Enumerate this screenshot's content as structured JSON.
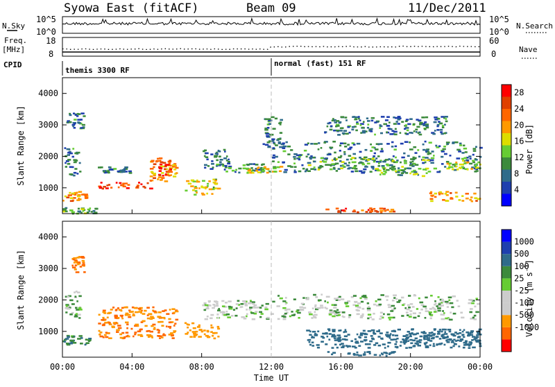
{
  "header": {
    "station": "Syowa East (fitACF)",
    "beam": "Beam 09",
    "date": "11/Dec/2011"
  },
  "top_panel": {
    "left_label": "N.Sky",
    "right_label": "N.Search",
    "left_ticks": [
      "10^5",
      "10^0"
    ],
    "right_ticks": [
      "10^5",
      "10^0"
    ]
  },
  "freq_panel": {
    "left_label_1": "Freq.",
    "left_label_2": "[MHz]",
    "right_label": "Nave",
    "left_ticks": [
      "18",
      "8"
    ],
    "right_ticks": [
      "60",
      "0"
    ]
  },
  "cpid": {
    "label": "CPID",
    "mode1": "themis 3300 RF",
    "mode2": "normal (fast) 151 RF"
  },
  "colors": {
    "power_scale": [
      "#0000ff",
      "#1e3fae",
      "#2f6b8a",
      "#3c8a3c",
      "#66cc33",
      "#dddd00",
      "#ff9900",
      "#ff6600",
      "#e04000",
      "#ff0000"
    ],
    "velocity_scale": [
      "#ff0000",
      "#ff6600",
      "#ff9900",
      "#cccccc",
      "#cccccc",
      "#66cc33",
      "#3c8a3c",
      "#2f6b8a",
      "#1e3fae",
      "#0000ff"
    ]
  },
  "chart_data": [
    {
      "type": "heatmap",
      "panel": "power",
      "ylabel": "Slant Range [km]",
      "ylim": [
        180,
        4500
      ],
      "y_ticks": [
        "1000",
        "2000",
        "3000",
        "4000"
      ],
      "colorbar_label": "Power [dB]",
      "colorbar_ticks": [
        "4",
        "8",
        "12",
        "16",
        "20",
        "24",
        "28"
      ],
      "colorbar_range": [
        0,
        30
      ],
      "regions": [
        {
          "t": [
            0.1,
            1.0
          ],
          "r": [
            1400,
            2300
          ],
          "v": 8
        },
        {
          "t": [
            0.2,
            1.2
          ],
          "r": [
            2900,
            3400
          ],
          "v": 8
        },
        {
          "t": [
            0.0,
            1.5
          ],
          "r": [
            600,
            900
          ],
          "v": 20
        },
        {
          "t": [
            0.0,
            2.0
          ],
          "r": [
            200,
            400
          ],
          "v": 12
        },
        {
          "t": [
            2.0,
            5.0
          ],
          "r": [
            1000,
            1200
          ],
          "v": 26
        },
        {
          "t": [
            2.0,
            4.0
          ],
          "r": [
            1500,
            1700
          ],
          "v": 8
        },
        {
          "t": [
            5.0,
            6.5
          ],
          "r": [
            1200,
            2000
          ],
          "v": 20
        },
        {
          "t": [
            5.5,
            6.2
          ],
          "r": [
            1400,
            1900
          ],
          "v": 26
        },
        {
          "t": [
            7.0,
            9.0
          ],
          "r": [
            800,
            1300
          ],
          "v": 16
        },
        {
          "t": [
            8.0,
            9.5
          ],
          "r": [
            1600,
            2300
          ],
          "v": 8
        },
        {
          "t": [
            9.0,
            11.5
          ],
          "r": [
            1500,
            1800
          ],
          "v": 8
        },
        {
          "t": [
            10.5,
            12.5
          ],
          "r": [
            1500,
            1700
          ],
          "v": 16
        },
        {
          "t": [
            11.5,
            12.5
          ],
          "r": [
            2300,
            3300
          ],
          "v": 8
        },
        {
          "t": [
            12.0,
            24.0
          ],
          "r": [
            1500,
            2500
          ],
          "v": 8
        },
        {
          "t": [
            15.0,
            19.0
          ],
          "r": [
            250,
            380
          ],
          "v": 24
        },
        {
          "t": [
            14.0,
            18.0
          ],
          "r": [
            1600,
            2000
          ],
          "v": 12
        },
        {
          "t": [
            18.0,
            21.0
          ],
          "r": [
            1400,
            2000
          ],
          "v": 12
        },
        {
          "t": [
            21.0,
            24.0
          ],
          "r": [
            600,
            900
          ],
          "v": 20
        },
        {
          "t": [
            22.0,
            24.0
          ],
          "r": [
            1600,
            1900
          ],
          "v": 16
        },
        {
          "t": [
            15.0,
            22.0
          ],
          "r": [
            2700,
            3300
          ],
          "v": 8
        }
      ]
    },
    {
      "type": "heatmap",
      "panel": "velocity",
      "xlabel": "Time UT",
      "ylabel": "Slant Range [km]",
      "ylim": [
        180,
        4500
      ],
      "y_ticks": [
        "1000",
        "2000",
        "3000",
        "4000"
      ],
      "x_ticks": [
        "00:00",
        "04:00",
        "08:00",
        "12:00",
        "16:00",
        "20:00",
        "00:00"
      ],
      "xlim": [
        0,
        24
      ],
      "colorbar_label": "Velocity [m s^-1]",
      "colorbar_ticks": [
        "1000",
        "500",
        "100",
        "25",
        "-25",
        "-100",
        "-500",
        "-1000"
      ],
      "regions": [
        {
          "t": [
            0.1,
            1.0
          ],
          "r": [
            1400,
            2300
          ],
          "v": 25
        },
        {
          "t": [
            0.0,
            1.5
          ],
          "r": [
            600,
            900
          ],
          "v": 100
        },
        {
          "t": [
            0.5,
            1.2
          ],
          "r": [
            2900,
            3400
          ],
          "v": -500
        },
        {
          "t": [
            2.0,
            6.5
          ],
          "r": [
            800,
            1800
          ],
          "v": -500
        },
        {
          "t": [
            7.0,
            9.0
          ],
          "r": [
            800,
            1300
          ],
          "v": -300
        },
        {
          "t": [
            8.0,
            12.0
          ],
          "r": [
            1400,
            2000
          ],
          "v": 0
        },
        {
          "t": [
            12.0,
            24.0
          ],
          "r": [
            1400,
            2200
          ],
          "v": 0
        },
        {
          "t": [
            15.0,
            19.0
          ],
          "r": [
            250,
            380
          ],
          "v": 200
        },
        {
          "t": [
            14.0,
            24.0
          ],
          "r": [
            500,
            1100
          ],
          "v": 200
        },
        {
          "t": [
            19.5,
            24.0
          ],
          "r": [
            600,
            1000
          ],
          "v": 300
        }
      ]
    }
  ]
}
